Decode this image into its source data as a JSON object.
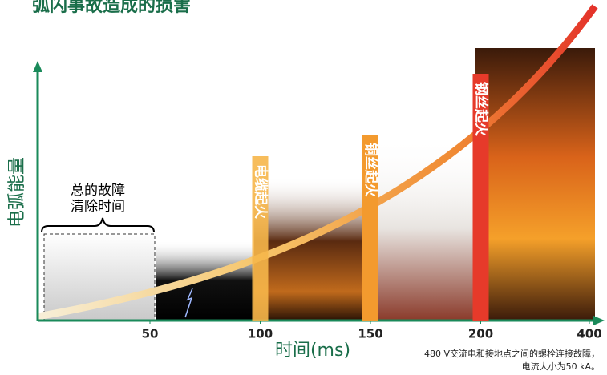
{
  "chart_data": {
    "type": "timeline",
    "title": "弧闪事故造成的损害",
    "y_label": "电弧能量",
    "x_label": "时间(ms)",
    "xticks": [
      50,
      100,
      150,
      200,
      400
    ],
    "clearing_label": [
      "总的故障",
      "清除时间"
    ],
    "events": [
      {
        "x": 100,
        "label": "电缆起火",
        "color": "#f6b64a"
      },
      {
        "x": 150,
        "label": "铜丝起火",
        "color": "#f39a2e"
      },
      {
        "x": 200,
        "label": "钢丝起火",
        "color": "#e63a2a"
      }
    ],
    "note": [
      "480 V交流电和接地点之间的螺栓连接故障，",
      "电流大小为50 kA。"
    ]
  }
}
